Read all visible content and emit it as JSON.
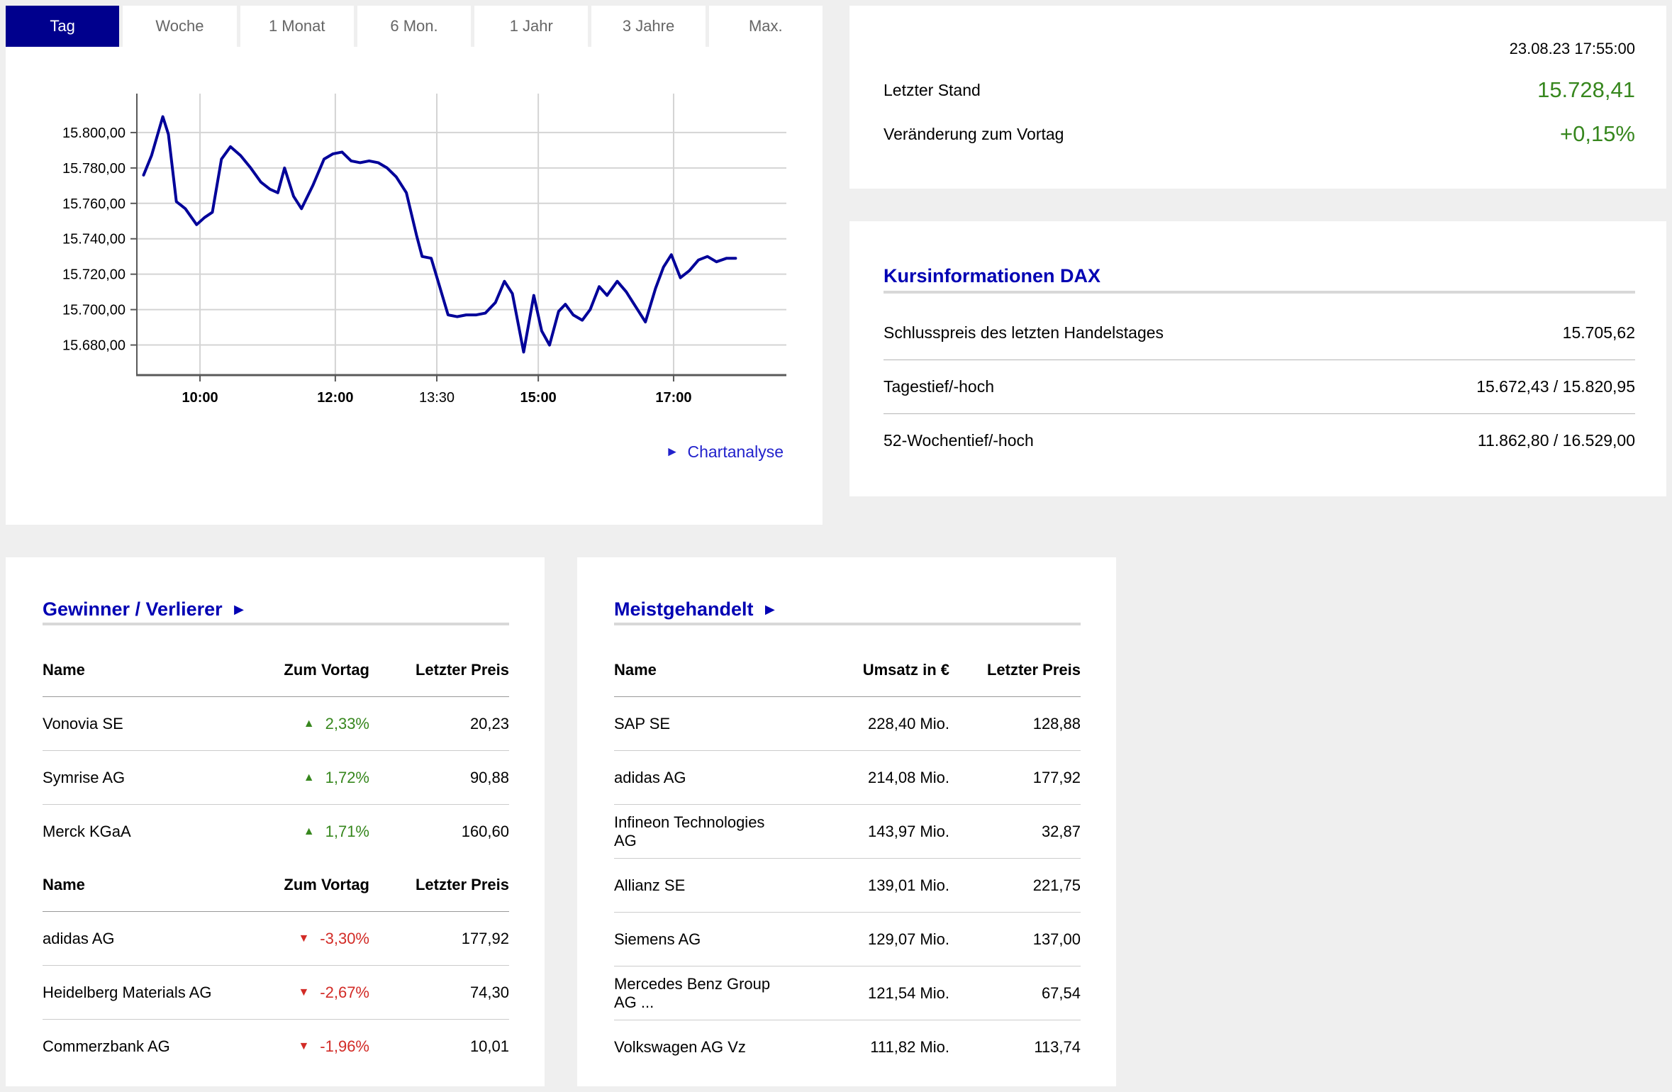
{
  "colors": {
    "page_bg": "#efefef",
    "panel_bg": "#ffffff",
    "active_tab": "#00008d",
    "title_blue": "#0000b3",
    "link_blue": "#2222cc",
    "chart_line": "#000099",
    "positive_green": "#37871e",
    "negative_red": "#d22b26",
    "grid": "#d4d4d4",
    "axis": "#595959"
  },
  "icons": {
    "arrow_right": "►",
    "triangle_up": "▲",
    "triangle_down": "▼"
  },
  "tabs": [
    {
      "label": "Tag",
      "active": true
    },
    {
      "label": "Woche",
      "active": false
    },
    {
      "label": "1 Monat",
      "active": false
    },
    {
      "label": "6 Mon.",
      "active": false
    },
    {
      "label": "1 Jahr",
      "active": false
    },
    {
      "label": "3 Jahre",
      "active": false
    },
    {
      "label": "Max.",
      "active": false
    }
  ],
  "chart_links": {
    "chartanalyse": "Chartanalyse"
  },
  "quote": {
    "timestamp": "23.08.23 17:55:00",
    "last_label": "Letzter Stand",
    "last_value": "15.728,41",
    "change_label": "Veränderung zum Vortag",
    "change_value": "+0,15%"
  },
  "kursinfo": {
    "title": "Kursinformationen DAX",
    "rows": [
      {
        "label": "Schlusspreis des letzten Handelstages",
        "value": "15.705,62"
      },
      {
        "label": "Tagestief/-hoch",
        "value": "15.672,43 / 15.820,95"
      },
      {
        "label": "52-Wochentief/-hoch",
        "value": "11.862,80 / 16.529,00"
      }
    ]
  },
  "gainers_losers": {
    "title": "Gewinner / Verlierer",
    "columns": [
      "Name",
      "Zum Vortag",
      "Letzter Preis"
    ],
    "gainers": [
      {
        "name": "Vonovia SE",
        "change": "2,33%",
        "price": "20,23"
      },
      {
        "name": "Symrise AG",
        "change": "1,72%",
        "price": "90,88"
      },
      {
        "name": "Merck KGaA",
        "change": "1,71%",
        "price": "160,60"
      }
    ],
    "losers": [
      {
        "name": "adidas AG",
        "change": "-3,30%",
        "price": "177,92"
      },
      {
        "name": "Heidelberg Materials AG",
        "change": "-2,67%",
        "price": "74,30"
      },
      {
        "name": "Commerzbank AG",
        "change": "-1,96%",
        "price": "10,01"
      }
    ]
  },
  "most_traded": {
    "title": "Meistgehandelt",
    "columns": [
      "Name",
      "Umsatz in €",
      "Letzter Preis"
    ],
    "rows": [
      {
        "name": "SAP SE",
        "volume": "228,40 Mio.",
        "price": "128,88"
      },
      {
        "name": "adidas AG",
        "volume": "214,08 Mio.",
        "price": "177,92"
      },
      {
        "name": "Infineon Technologies AG",
        "volume": "143,97 Mio.",
        "price": "32,87"
      },
      {
        "name": "Allianz SE",
        "volume": "139,01 Mio.",
        "price": "221,75"
      },
      {
        "name": "Siemens AG",
        "volume": "129,07 Mio.",
        "price": "137,00"
      },
      {
        "name": "Mercedes Benz Group AG ...",
        "volume": "121,54 Mio.",
        "price": "67,54"
      },
      {
        "name": "Volkswagen AG Vz",
        "volume": "111,82 Mio.",
        "price": "113,74"
      }
    ]
  },
  "chart_data": {
    "type": "line",
    "title": "DAX Intraday (Tag)",
    "xlabel": "",
    "ylabel": "",
    "grid": true,
    "legend": false,
    "line_color": "#000099",
    "grid_color": "#d4d4d4",
    "axis_color": "#595959",
    "x_domain": [
      "09:04",
      "18:40"
    ],
    "y_domain": [
      15663,
      15822
    ],
    "y_ticks": [
      {
        "value": 15800,
        "label": "15.800,00"
      },
      {
        "value": 15780,
        "label": "15.780,00"
      },
      {
        "value": 15760,
        "label": "15.760,00"
      },
      {
        "value": 15740,
        "label": "15.740,00"
      },
      {
        "value": 15720,
        "label": "15.720,00"
      },
      {
        "value": 15700,
        "label": "15.700,00"
      },
      {
        "value": 15680,
        "label": "15.680,00"
      }
    ],
    "x_ticks": [
      {
        "time": "10:00",
        "label": "10:00",
        "bold": true
      },
      {
        "time": "12:00",
        "label": "12:00",
        "bold": true
      },
      {
        "time": "13:30",
        "label": "13:30",
        "bold": false
      },
      {
        "time": "15:00",
        "label": "15:00",
        "bold": true
      },
      {
        "time": "17:00",
        "label": "17:00",
        "bold": true
      }
    ],
    "series": [
      {
        "name": "DAX",
        "color": "#000099",
        "points": [
          [
            "09:10",
            15776
          ],
          [
            "09:17",
            15787
          ],
          [
            "09:27",
            15809
          ],
          [
            "09:32",
            15799
          ],
          [
            "09:39",
            15761
          ],
          [
            "09:47",
            15757
          ],
          [
            "09:57",
            15748
          ],
          [
            "10:04",
            15752
          ],
          [
            "10:11",
            15755
          ],
          [
            "10:19",
            15785
          ],
          [
            "10:27",
            15792
          ],
          [
            "10:36",
            15787
          ],
          [
            "10:45",
            15780
          ],
          [
            "10:54",
            15772
          ],
          [
            "11:02",
            15768
          ],
          [
            "11:09",
            15766
          ],
          [
            "11:15",
            15780
          ],
          [
            "11:23",
            15764
          ],
          [
            "11:30",
            15757
          ],
          [
            "11:40",
            15770
          ],
          [
            "11:50",
            15785
          ],
          [
            "11:58",
            15788
          ],
          [
            "12:06",
            15789
          ],
          [
            "12:14",
            15784
          ],
          [
            "12:22",
            15783
          ],
          [
            "12:30",
            15784
          ],
          [
            "12:38",
            15783
          ],
          [
            "12:46",
            15780
          ],
          [
            "12:54",
            15775
          ],
          [
            "13:03",
            15766
          ],
          [
            "13:12",
            15742
          ],
          [
            "13:17",
            15730
          ],
          [
            "13:25",
            15729
          ],
          [
            "13:33",
            15712
          ],
          [
            "13:40",
            15697
          ],
          [
            "13:48",
            15696
          ],
          [
            "13:56",
            15697
          ],
          [
            "14:05",
            15697
          ],
          [
            "14:13",
            15698
          ],
          [
            "14:22",
            15704
          ],
          [
            "14:30",
            15716
          ],
          [
            "14:37",
            15709
          ],
          [
            "14:47",
            15676
          ],
          [
            "14:56",
            15708
          ],
          [
            "15:03",
            15688
          ],
          [
            "15:10",
            15680
          ],
          [
            "15:18",
            15699
          ],
          [
            "15:24",
            15703
          ],
          [
            "15:31",
            15697
          ],
          [
            "15:39",
            15694
          ],
          [
            "15:46",
            15700
          ],
          [
            "15:54",
            15713
          ],
          [
            "16:01",
            15708
          ],
          [
            "16:10",
            15716
          ],
          [
            "16:18",
            15710
          ],
          [
            "16:27",
            15701
          ],
          [
            "16:35",
            15693
          ],
          [
            "16:44",
            15712
          ],
          [
            "16:51",
            15724
          ],
          [
            "16:58",
            15731
          ],
          [
            "17:06",
            15718
          ],
          [
            "17:14",
            15722
          ],
          [
            "17:22",
            15728
          ],
          [
            "17:30",
            15730
          ],
          [
            "17:38",
            15727
          ],
          [
            "17:47",
            15729
          ],
          [
            "17:55",
            15729
          ]
        ]
      }
    ]
  }
}
